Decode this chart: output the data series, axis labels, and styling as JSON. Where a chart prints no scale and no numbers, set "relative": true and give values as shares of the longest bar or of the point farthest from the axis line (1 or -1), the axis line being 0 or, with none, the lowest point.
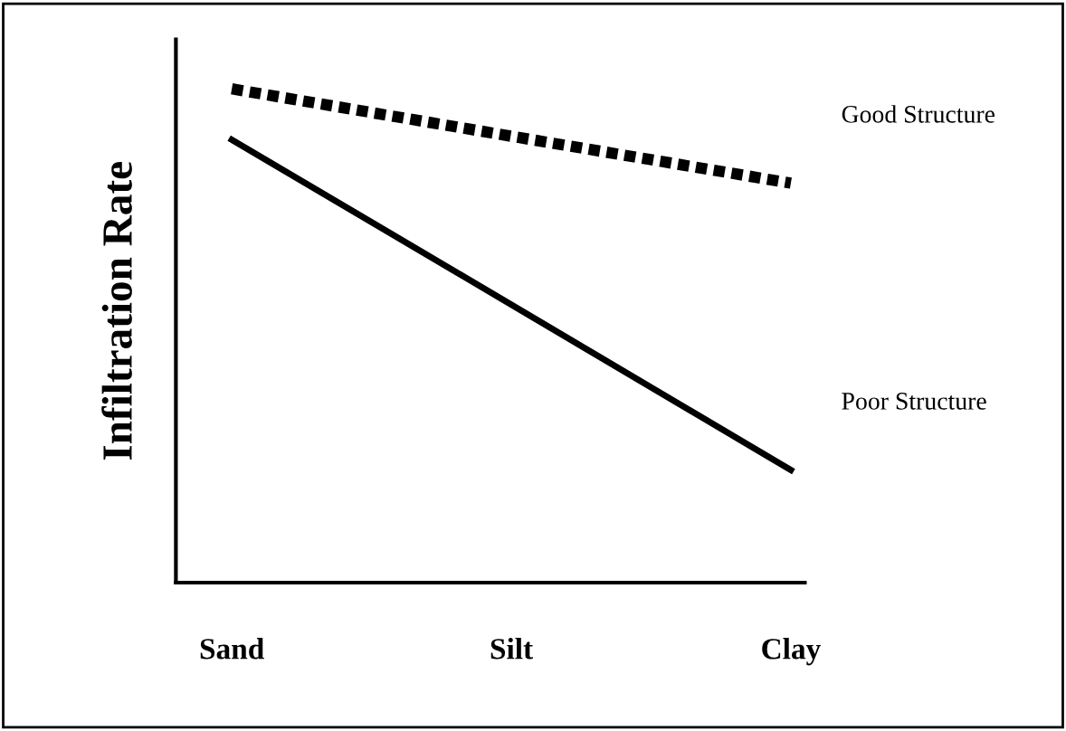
{
  "chart_data": {
    "type": "line",
    "relative": true,
    "ylabel": "Infiltration Rate",
    "categories": [
      "Sand",
      "Silt",
      "Clay"
    ],
    "series": [
      {
        "name": "Good Structure",
        "color": "#000000",
        "line_style": "dotted",
        "values": [
          1,
          0.904,
          0.809
        ]
      },
      {
        "name": "Poor Structure",
        "color": "#000000",
        "line_style": "solid",
        "values": [
          0.897,
          0.563,
          0.228
        ]
      }
    ],
    "marker": "none",
    "grid": false,
    "legend": false
  }
}
